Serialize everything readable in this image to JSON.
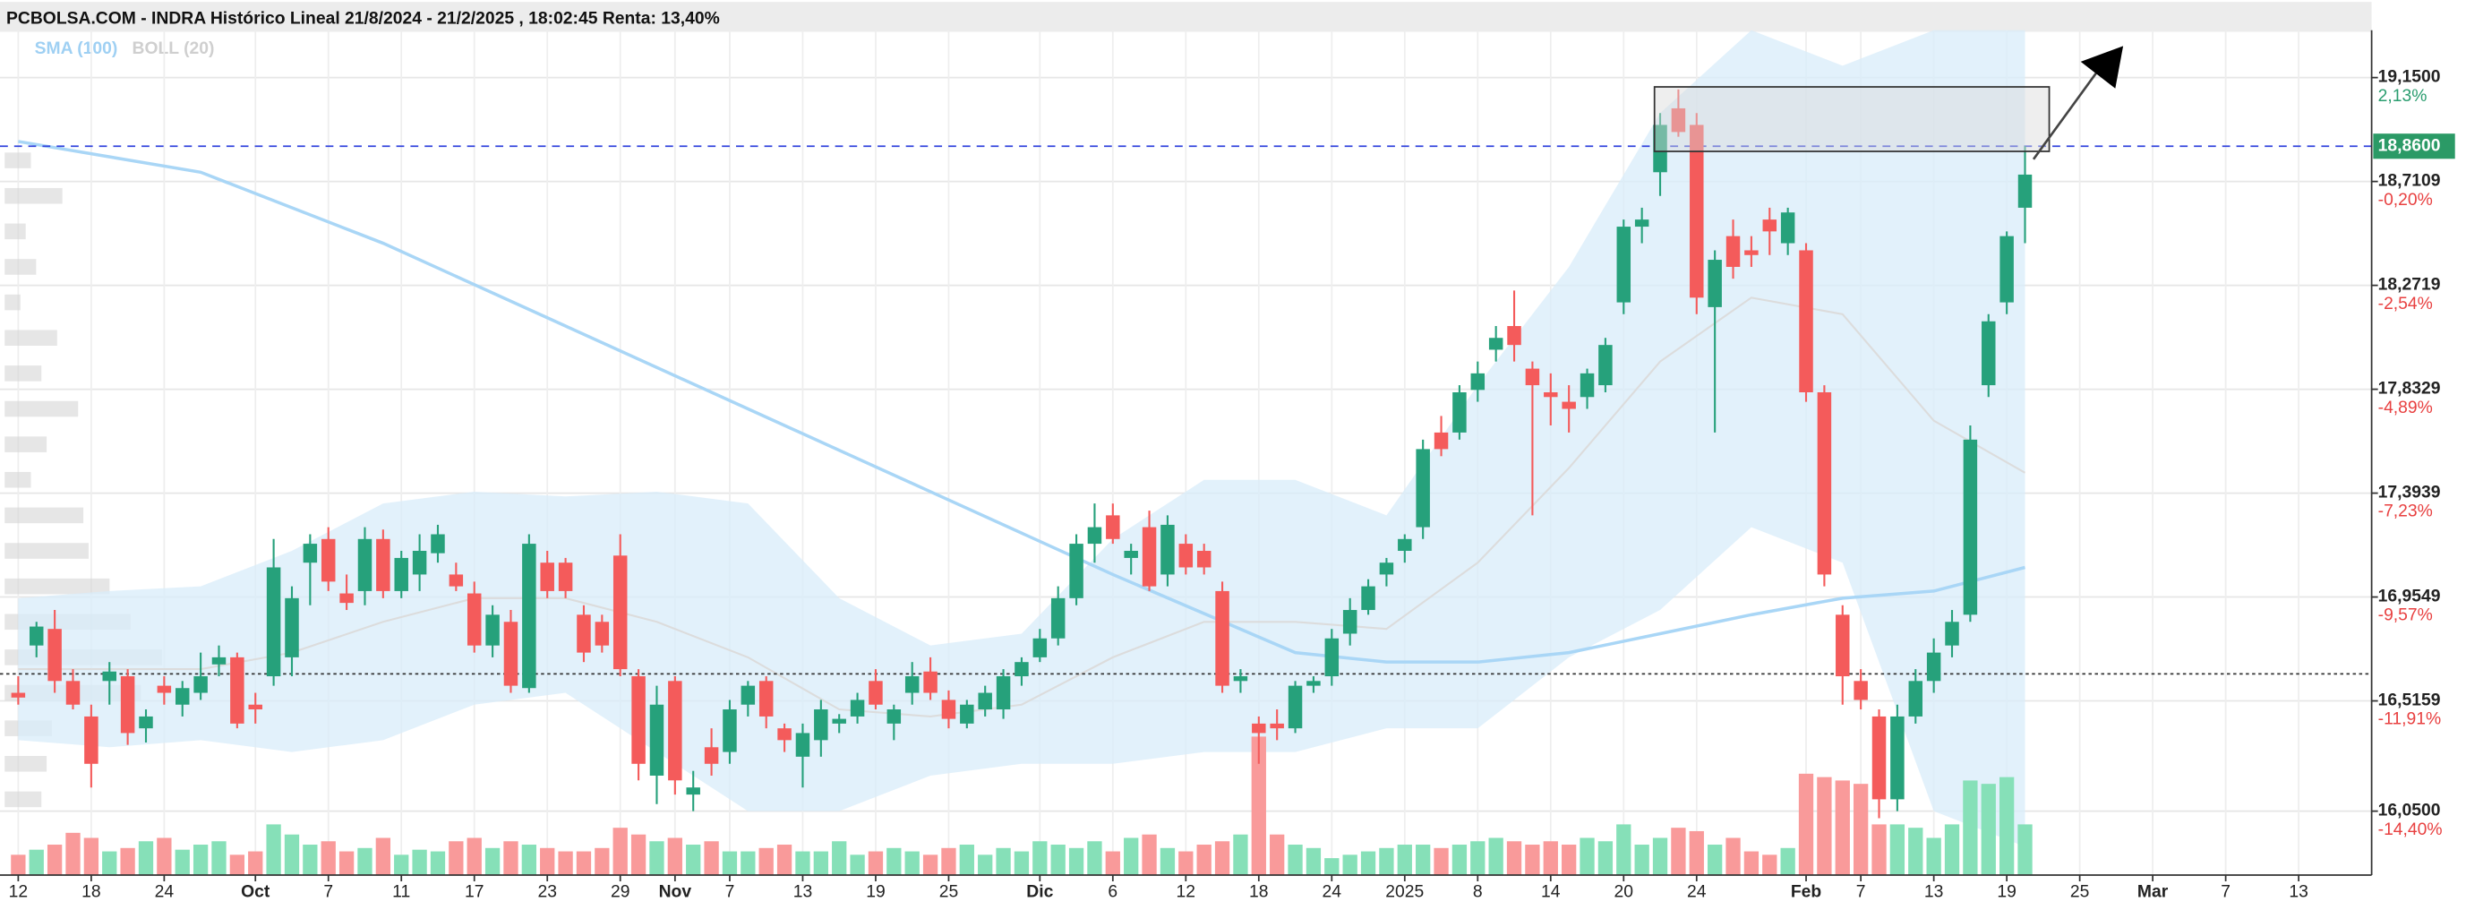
{
  "chart_data": {
    "type": "candlestick",
    "title": "PCBOLSA.COM - INDRA Histórico Lineal 21/8/2024 - 21/2/2025 , 18:02:45 Renta: 13,40%",
    "legend": [
      "SMA (100)",
      "BOLL (20)"
    ],
    "colors": {
      "up": "#26a17b",
      "down": "#f45b5b",
      "volume_up": "#86e0b8",
      "volume_down": "#f99a9a",
      "sma": "#a9d6f6",
      "boll_fill": "#d8ecfa",
      "boll_mid": "#dcdcdc",
      "last_price": "#2b9a66",
      "last_price_line": "#3344dd",
      "reference_line": "#333333"
    },
    "ylim": [
      15.78,
      19.35
    ],
    "xlim": [
      -1,
      129
    ],
    "yticks": [
      {
        "value": 19.15,
        "label": "19,1500"
      },
      {
        "value": 18.7109,
        "label": "18,7109"
      },
      {
        "value": 18.2719,
        "label": "18,2719"
      },
      {
        "value": 17.8329,
        "label": "17,8329"
      },
      {
        "value": 17.3939,
        "label": "17,3939"
      },
      {
        "value": 16.9549,
        "label": "16,9549"
      },
      {
        "value": 16.5159,
        "label": "16,5159"
      },
      {
        "value": 16.05,
        "label": "16,0500"
      }
    ],
    "ytick_changes": [
      "2,13%",
      "-0,20%",
      "-2,54%",
      "-4,89%",
      "-7,23%",
      "-9,57%",
      "-11,91%",
      "-14,40%"
    ],
    "xticks": [
      {
        "value": 0,
        "label": "12"
      },
      {
        "value": 4,
        "label": "18"
      },
      {
        "value": 8,
        "label": "24"
      },
      {
        "value": 13,
        "label": "Oct"
      },
      {
        "value": 17,
        "label": "7"
      },
      {
        "value": 21,
        "label": "11"
      },
      {
        "value": 25,
        "label": "17"
      },
      {
        "value": 29,
        "label": "23"
      },
      {
        "value": 33,
        "label": "29"
      },
      {
        "value": 36,
        "label": "Nov"
      },
      {
        "value": 39,
        "label": "7"
      },
      {
        "value": 43,
        "label": "13"
      },
      {
        "value": 47,
        "label": "19"
      },
      {
        "value": 51,
        "label": "25"
      },
      {
        "value": 56,
        "label": "Dic"
      },
      {
        "value": 60,
        "label": "6"
      },
      {
        "value": 64,
        "label": "12"
      },
      {
        "value": 68,
        "label": "18"
      },
      {
        "value": 72,
        "label": "24"
      },
      {
        "value": 76,
        "label": "2025"
      },
      {
        "value": 80,
        "label": "8"
      },
      {
        "value": 84,
        "label": "14"
      },
      {
        "value": 88,
        "label": "20"
      },
      {
        "value": 92,
        "label": "24"
      },
      {
        "value": 98,
        "label": "Feb"
      },
      {
        "value": 101,
        "label": "7"
      },
      {
        "value": 105,
        "label": "13"
      },
      {
        "value": 109,
        "label": "19"
      },
      {
        "value": 113,
        "label": "25"
      },
      {
        "value": 117,
        "label": "Mar"
      },
      {
        "value": 121,
        "label": "7"
      },
      {
        "value": 125,
        "label": "13"
      }
    ],
    "grid": true,
    "last_price": {
      "value": 18.86,
      "label": "18,8600"
    },
    "reference_price": 16.63,
    "candles": [
      [
        16.55,
        16.62,
        16.5,
        16.53
      ],
      [
        16.75,
        16.85,
        16.7,
        16.83
      ],
      [
        16.82,
        16.9,
        16.55,
        16.6
      ],
      [
        16.6,
        16.65,
        16.48,
        16.5
      ],
      [
        16.45,
        16.5,
        16.15,
        16.25
      ],
      [
        16.6,
        16.68,
        16.5,
        16.64
      ],
      [
        16.62,
        16.65,
        16.33,
        16.38
      ],
      [
        16.4,
        16.48,
        16.34,
        16.45
      ],
      [
        16.58,
        16.62,
        16.5,
        16.55
      ],
      [
        16.5,
        16.6,
        16.45,
        16.57
      ],
      [
        16.55,
        16.72,
        16.52,
        16.62
      ],
      [
        16.67,
        16.75,
        16.62,
        16.7
      ],
      [
        16.7,
        16.72,
        16.4,
        16.42
      ],
      [
        16.5,
        16.55,
        16.42,
        16.48
      ],
      [
        16.62,
        17.2,
        16.58,
        17.08
      ],
      [
        16.7,
        17.0,
        16.62,
        16.95
      ],
      [
        17.1,
        17.22,
        16.92,
        17.18
      ],
      [
        17.2,
        17.25,
        16.98,
        17.02
      ],
      [
        16.97,
        17.05,
        16.9,
        16.93
      ],
      [
        16.98,
        17.25,
        16.92,
        17.2
      ],
      [
        17.2,
        17.24,
        16.95,
        16.98
      ],
      [
        16.98,
        17.15,
        16.95,
        17.12
      ],
      [
        17.05,
        17.22,
        16.98,
        17.15
      ],
      [
        17.14,
        17.26,
        17.1,
        17.22
      ],
      [
        17.05,
        17.1,
        16.98,
        17.0
      ],
      [
        16.97,
        17.02,
        16.72,
        16.75
      ],
      [
        16.75,
        16.92,
        16.7,
        16.88
      ],
      [
        16.85,
        16.9,
        16.55,
        16.58
      ],
      [
        16.57,
        17.22,
        16.55,
        17.18
      ],
      [
        17.1,
        17.15,
        16.95,
        16.98
      ],
      [
        17.1,
        17.12,
        16.95,
        16.98
      ],
      [
        16.88,
        16.92,
        16.68,
        16.72
      ],
      [
        16.85,
        16.88,
        16.72,
        16.75
      ],
      [
        17.13,
        17.22,
        16.62,
        16.65
      ],
      [
        16.62,
        16.65,
        16.18,
        16.25
      ],
      [
        16.2,
        16.58,
        16.08,
        16.5
      ],
      [
        16.6,
        16.62,
        16.12,
        16.18
      ],
      [
        16.12,
        16.22,
        16.05,
        16.15
      ],
      [
        16.32,
        16.4,
        16.2,
        16.25
      ],
      [
        16.3,
        16.52,
        16.25,
        16.48
      ],
      [
        16.5,
        16.6,
        16.45,
        16.58
      ],
      [
        16.6,
        16.62,
        16.4,
        16.45
      ],
      [
        16.4,
        16.42,
        16.3,
        16.35
      ],
      [
        16.28,
        16.42,
        16.15,
        16.38
      ],
      [
        16.35,
        16.52,
        16.28,
        16.48
      ],
      [
        16.42,
        16.46,
        16.38,
        16.44
      ],
      [
        16.45,
        16.55,
        16.42,
        16.52
      ],
      [
        16.6,
        16.65,
        16.48,
        16.5
      ],
      [
        16.42,
        16.5,
        16.35,
        16.48
      ],
      [
        16.55,
        16.68,
        16.5,
        16.62
      ],
      [
        16.64,
        16.7,
        16.52,
        16.55
      ],
      [
        16.52,
        16.56,
        16.4,
        16.44
      ],
      [
        16.42,
        16.52,
        16.4,
        16.5
      ],
      [
        16.48,
        16.58,
        16.45,
        16.55
      ],
      [
        16.48,
        16.65,
        16.44,
        16.62
      ],
      [
        16.62,
        16.7,
        16.58,
        16.68
      ],
      [
        16.7,
        16.82,
        16.68,
        16.78
      ],
      [
        16.78,
        17.0,
        16.75,
        16.95
      ],
      [
        16.95,
        17.22,
        16.92,
        17.18
      ],
      [
        17.18,
        17.35,
        17.1,
        17.25
      ],
      [
        17.3,
        17.35,
        17.18,
        17.2
      ],
      [
        17.12,
        17.18,
        17.05,
        17.15
      ],
      [
        17.25,
        17.32,
        16.98,
        17.0
      ],
      [
        17.05,
        17.3,
        17.0,
        17.26
      ],
      [
        17.18,
        17.22,
        17.05,
        17.08
      ],
      [
        17.15,
        17.18,
        17.05,
        17.08
      ],
      [
        16.98,
        17.02,
        16.55,
        16.58
      ],
      [
        16.6,
        16.65,
        16.55,
        16.62
      ],
      [
        16.42,
        16.45,
        16.25,
        16.38
      ],
      [
        16.42,
        16.48,
        16.35,
        16.4
      ],
      [
        16.4,
        16.6,
        16.38,
        16.58
      ],
      [
        16.58,
        16.62,
        16.55,
        16.6
      ],
      [
        16.62,
        16.82,
        16.58,
        16.78
      ],
      [
        16.8,
        16.95,
        16.75,
        16.9
      ],
      [
        16.9,
        17.03,
        16.88,
        17.0
      ],
      [
        17.05,
        17.12,
        17.0,
        17.1
      ],
      [
        17.15,
        17.22,
        17.1,
        17.2
      ],
      [
        17.25,
        17.62,
        17.2,
        17.58
      ],
      [
        17.65,
        17.72,
        17.55,
        17.58
      ],
      [
        17.65,
        17.85,
        17.62,
        17.82
      ],
      [
        17.83,
        17.95,
        17.78,
        17.9
      ],
      [
        18.0,
        18.1,
        17.95,
        18.05
      ],
      [
        18.1,
        18.25,
        17.95,
        18.02
      ],
      [
        17.92,
        17.95,
        17.3,
        17.85
      ],
      [
        17.82,
        17.9,
        17.68,
        17.8
      ],
      [
        17.78,
        17.85,
        17.65,
        17.75
      ],
      [
        17.8,
        17.92,
        17.75,
        17.9
      ],
      [
        17.85,
        18.05,
        17.82,
        18.02
      ],
      [
        18.2,
        18.55,
        18.15,
        18.52
      ],
      [
        18.52,
        18.6,
        18.45,
        18.55
      ],
      [
        18.75,
        19.0,
        18.65,
        18.95
      ],
      [
        19.02,
        19.1,
        18.9,
        18.92
      ],
      [
        18.95,
        19.0,
        18.15,
        18.22
      ],
      [
        18.18,
        18.42,
        17.65,
        18.38
      ],
      [
        18.48,
        18.55,
        18.3,
        18.35
      ],
      [
        18.42,
        18.48,
        18.35,
        18.4
      ],
      [
        18.55,
        18.6,
        18.4,
        18.5
      ],
      [
        18.45,
        18.6,
        18.4,
        18.58
      ],
      [
        18.42,
        18.45,
        17.78,
        17.82
      ],
      [
        17.82,
        17.85,
        17.0,
        17.05
      ],
      [
        16.88,
        16.92,
        16.5,
        16.62
      ],
      [
        16.6,
        16.65,
        16.48,
        16.52
      ],
      [
        16.45,
        16.48,
        16.02,
        16.1
      ],
      [
        16.1,
        16.5,
        16.05,
        16.45
      ],
      [
        16.45,
        16.65,
        16.42,
        16.6
      ],
      [
        16.6,
        16.78,
        16.55,
        16.72
      ],
      [
        16.75,
        16.9,
        16.7,
        16.85
      ],
      [
        16.88,
        17.68,
        16.85,
        17.62
      ],
      [
        17.85,
        18.15,
        17.8,
        18.12
      ],
      [
        18.2,
        18.5,
        18.15,
        18.48
      ],
      [
        18.6,
        18.86,
        18.45,
        18.74
      ]
    ],
    "volume": [
      12,
      15,
      18,
      25,
      22,
      14,
      16,
      20,
      22,
      15,
      18,
      20,
      12,
      14,
      30,
      24,
      18,
      20,
      14,
      16,
      22,
      12,
      15,
      14,
      20,
      22,
      16,
      20,
      18,
      16,
      14,
      14,
      16,
      28,
      24,
      20,
      22,
      18,
      20,
      14,
      14,
      16,
      18,
      14,
      14,
      20,
      12,
      14,
      16,
      14,
      12,
      16,
      18,
      12,
      16,
      14,
      20,
      18,
      16,
      20,
      14,
      22,
      24,
      16,
      14,
      18,
      20,
      24,
      82,
      24,
      18,
      16,
      10,
      12,
      14,
      16,
      18,
      18,
      16,
      18,
      20,
      22,
      20,
      18,
      20,
      18,
      22,
      20,
      30,
      18,
      22,
      28,
      26,
      18,
      22,
      14,
      12,
      16,
      60,
      58,
      56,
      54,
      30,
      30,
      28,
      22,
      30,
      56,
      54,
      58,
      30
    ]
  },
  "sma": {
    "x": [
      0,
      10,
      20,
      30,
      40,
      50,
      60,
      70,
      75,
      80,
      85,
      90,
      95,
      100,
      105,
      110
    ],
    "values": [
      18.88,
      18.75,
      18.45,
      18.1,
      17.75,
      17.4,
      17.05,
      16.72,
      16.68,
      16.68,
      16.72,
      16.8,
      16.88,
      16.95,
      16.98,
      17.08
    ]
  },
  "bollinger": {
    "x": [
      0,
      5,
      10,
      15,
      20,
      25,
      30,
      35,
      40,
      45,
      50,
      55,
      60,
      65,
      70,
      75,
      80,
      85,
      90,
      95,
      100,
      105,
      110
    ],
    "upper": [
      16.95,
      16.98,
      17.0,
      17.15,
      17.35,
      17.4,
      17.38,
      17.4,
      17.35,
      16.95,
      16.75,
      16.8,
      17.2,
      17.45,
      17.45,
      17.3,
      17.85,
      18.35,
      19.0,
      19.35,
      19.2,
      19.35,
      19.35
    ],
    "middle": [
      16.65,
      16.65,
      16.65,
      16.72,
      16.85,
      16.95,
      16.95,
      16.85,
      16.7,
      16.48,
      16.45,
      16.5,
      16.7,
      16.85,
      16.85,
      16.82,
      17.1,
      17.5,
      17.95,
      18.22,
      18.15,
      17.7,
      17.48
    ],
    "lower": [
      16.35,
      16.32,
      16.35,
      16.3,
      16.35,
      16.5,
      16.55,
      16.3,
      16.05,
      16.05,
      16.2,
      16.25,
      16.25,
      16.3,
      16.3,
      16.4,
      16.4,
      16.7,
      16.9,
      17.25,
      17.1,
      16.05,
      15.9
    ]
  },
  "volume_profile": {
    "prices": [
      18.8,
      18.65,
      18.5,
      18.35,
      18.2,
      18.05,
      17.9,
      17.75,
      17.6,
      17.45,
      17.3,
      17.15,
      17.0,
      16.85,
      16.7,
      16.55,
      16.4,
      16.25,
      16.1
    ],
    "values": [
      10,
      22,
      8,
      12,
      6,
      20,
      14,
      28,
      16,
      10,
      30,
      32,
      40,
      48,
      60,
      52,
      18,
      16,
      14
    ]
  }
}
